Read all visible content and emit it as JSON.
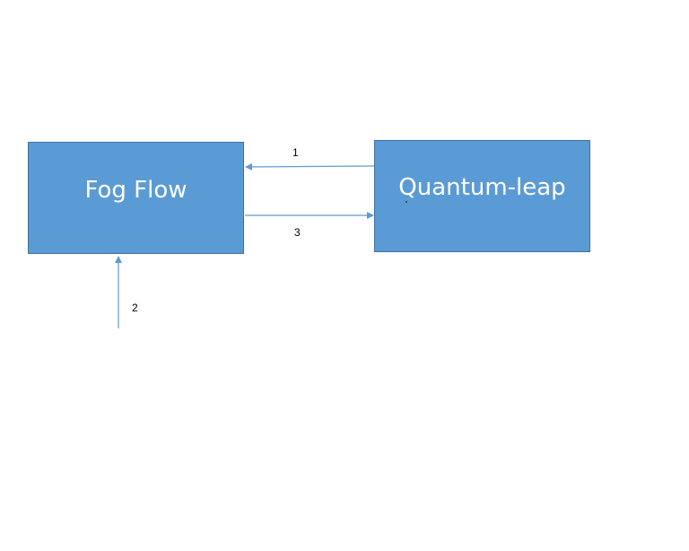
{
  "colors": {
    "box_fill": "#5b9bd5",
    "box_border": "#41719c",
    "connector": "#5b9bd5",
    "box_text": "#ffffff"
  },
  "nodes": {
    "fog_flow": {
      "label": "Fog Flow"
    },
    "quantum_leap": {
      "label": "Quantum-leap"
    }
  },
  "edges": {
    "e1": {
      "label": "1",
      "from": "Quantum-leap",
      "to": "Fog Flow"
    },
    "e2": {
      "label": "2",
      "from": "external",
      "to": "Fog Flow"
    },
    "e3": {
      "label": "3",
      "from": "Fog Flow",
      "to": "Quantum-leap"
    }
  }
}
